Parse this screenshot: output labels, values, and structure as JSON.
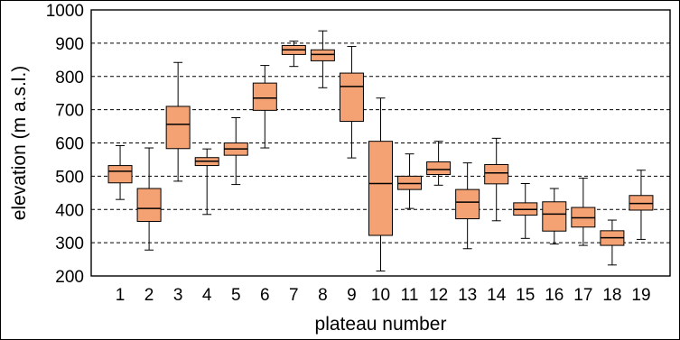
{
  "chart_data": {
    "type": "boxplot",
    "xlabel": "plateau number",
    "ylabel": "elevation (m a.s.l.)",
    "ylim": [
      200,
      1000
    ],
    "yticks": [
      200,
      300,
      400,
      500,
      600,
      700,
      800,
      900,
      1000
    ],
    "grid": "horizontal dashed",
    "categories": [
      "1",
      "2",
      "3",
      "4",
      "5",
      "6",
      "7",
      "8",
      "9",
      "10",
      "11",
      "12",
      "13",
      "14",
      "15",
      "16",
      "17",
      "18",
      "19"
    ],
    "boxes": [
      {
        "min": 430,
        "q1": 480,
        "median": 515,
        "q3": 532,
        "max": 592
      },
      {
        "min": 278,
        "q1": 364,
        "median": 403,
        "q3": 463,
        "max": 585
      },
      {
        "min": 485,
        "q1": 583,
        "median": 656,
        "q3": 710,
        "max": 842
      },
      {
        "min": 385,
        "q1": 532,
        "median": 545,
        "q3": 556,
        "max": 582
      },
      {
        "min": 475,
        "q1": 563,
        "median": 582,
        "q3": 600,
        "max": 676
      },
      {
        "min": 585,
        "q1": 698,
        "median": 735,
        "q3": 780,
        "max": 833
      },
      {
        "min": 830,
        "q1": 866,
        "median": 880,
        "q3": 893,
        "max": 906
      },
      {
        "min": 766,
        "q1": 847,
        "median": 866,
        "q3": 880,
        "max": 937
      },
      {
        "min": 555,
        "q1": 665,
        "median": 770,
        "q3": 810,
        "max": 890
      },
      {
        "min": 215,
        "q1": 322,
        "median": 478,
        "q3": 605,
        "max": 735
      },
      {
        "min": 403,
        "q1": 460,
        "median": 478,
        "q3": 500,
        "max": 567
      },
      {
        "min": 473,
        "q1": 505,
        "median": 520,
        "q3": 543,
        "max": 605
      },
      {
        "min": 282,
        "q1": 372,
        "median": 422,
        "q3": 460,
        "max": 540
      },
      {
        "min": 366,
        "q1": 477,
        "median": 510,
        "q3": 535,
        "max": 614
      },
      {
        "min": 313,
        "q1": 383,
        "median": 400,
        "q3": 420,
        "max": 478
      },
      {
        "min": 296,
        "q1": 335,
        "median": 386,
        "q3": 423,
        "max": 463
      },
      {
        "min": 292,
        "q1": 347,
        "median": 375,
        "q3": 406,
        "max": 494
      },
      {
        "min": 233,
        "q1": 292,
        "median": 315,
        "q3": 336,
        "max": 368
      },
      {
        "min": 310,
        "q1": 398,
        "median": 418,
        "q3": 442,
        "max": 518
      }
    ],
    "colors": {
      "box_fill": "#f4a173",
      "stroke": "#000000",
      "grid": "#000000"
    }
  }
}
